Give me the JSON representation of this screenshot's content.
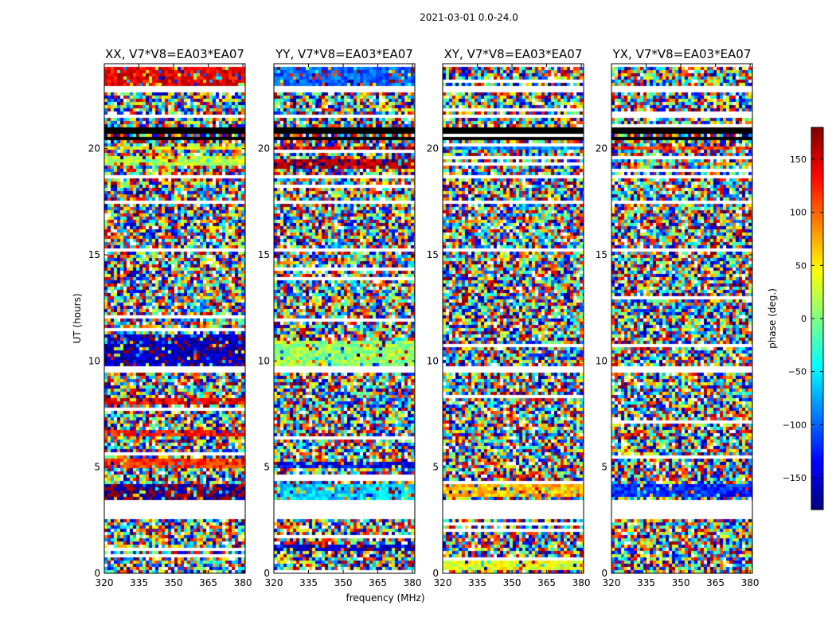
{
  "figure_title": "2021-03-01 0.0-24.0",
  "chart_data": [
    {
      "type": "heatmap",
      "title": "XX, V7*V8=EA03*EA07",
      "polarization": "XX",
      "xlabel": "",
      "ylabel": "UT (hours)",
      "xlim": [
        320,
        381
      ],
      "ylim": [
        0,
        24
      ],
      "xticks": [
        "320",
        "335",
        "350",
        "365",
        "380"
      ],
      "yticks": [
        "0",
        "5",
        "10",
        "15",
        "20"
      ],
      "features": [
        {
          "ut": [
            3.5,
            4.2
          ],
          "phase": -175,
          "note": "dark blue band"
        },
        {
          "ut": [
            3.7,
            3.85
          ],
          "phase": 175,
          "note": "dark red line"
        },
        {
          "ut": [
            5.0,
            5.4
          ],
          "phase": 120
        },
        {
          "ut": [
            6.4,
            6.8
          ],
          "phase": 130
        },
        {
          "ut": [
            8.0,
            8.3
          ],
          "phase": 140
        },
        {
          "ut": [
            9.8,
            11.2
          ],
          "phase": -160,
          "note": "blue band"
        },
        {
          "ut": [
            11.0,
            11.1
          ],
          "phase": 170
        },
        {
          "ut": [
            19.2,
            19.6
          ],
          "phase": 20
        },
        {
          "ut": [
            19.9,
            20.05
          ],
          "phase": 50
        },
        {
          "ut": [
            23.0,
            23.9
          ],
          "phase": 140
        }
      ]
    },
    {
      "type": "heatmap",
      "title": "YY, V7*V8=EA03*EA07",
      "polarization": "YY",
      "xlabel": "frequency (MHz)",
      "ylabel": "",
      "xlim": [
        320,
        381
      ],
      "ylim": [
        0,
        24
      ],
      "xticks": [
        "320",
        "335",
        "350",
        "365",
        "380"
      ],
      "yticks": [
        "0",
        "5",
        "10",
        "15",
        "20"
      ],
      "features": [
        {
          "ut": [
            1.0,
            1.4
          ],
          "phase": -160
        },
        {
          "ut": [
            3.5,
            4.2
          ],
          "phase": -60
        },
        {
          "ut": [
            4.9,
            5.3
          ],
          "phase": -140
        },
        {
          "ut": [
            9.6,
            11.0
          ],
          "phase": 10,
          "note": "green/light band"
        },
        {
          "ut": [
            19.0,
            19.5
          ],
          "phase": 165
        },
        {
          "ut": [
            19.9,
            20.1
          ],
          "phase": 160
        },
        {
          "ut": [
            23.0,
            23.9
          ],
          "phase": -100
        }
      ]
    },
    {
      "type": "heatmap",
      "title": "XY, V7*V8=EA03*EA07",
      "polarization": "XY",
      "xlabel": "",
      "ylabel": "",
      "xlim": [
        320,
        381
      ],
      "ylim": [
        0,
        24
      ],
      "xticks": [
        "320",
        "335",
        "350",
        "365",
        "380"
      ],
      "yticks": [
        "0",
        "5",
        "10",
        "15",
        "20"
      ],
      "features": [
        {
          "ut": [
            0.2,
            0.6
          ],
          "phase": 40
        },
        {
          "ut": [
            3.6,
            4.2
          ],
          "phase": 70
        },
        {
          "ut": [
            19.9,
            20.05
          ],
          "phase": -90
        }
      ]
    },
    {
      "type": "heatmap",
      "title": "YX, V7*V8=EA03*EA07",
      "polarization": "YX",
      "xlabel": "",
      "ylabel": "",
      "xlim": [
        320,
        381
      ],
      "ylim": [
        0,
        24
      ],
      "xticks": [
        "320",
        "335",
        "350",
        "365",
        "380"
      ],
      "yticks": [
        "0",
        "5",
        "10",
        "15",
        "20"
      ],
      "features": [
        {
          "ut": [
            3.6,
            4.2
          ],
          "phase": -120
        },
        {
          "ut": [
            19.9,
            20.05
          ],
          "phase": 120
        }
      ]
    }
  ],
  "shared": {
    "ut_gaps": [
      [
        2.6,
        3.4
      ],
      [
        9.5,
        9.7
      ],
      [
        13.0,
        13.1
      ],
      [
        15.1,
        15.35
      ],
      [
        17.4,
        17.6
      ],
      [
        18.6,
        18.75
      ],
      [
        21.4,
        21.6
      ],
      [
        22.6,
        22.9
      ],
      [
        23.9,
        24.0
      ]
    ],
    "ut_black_bands": [
      [
        20.4,
        20.55
      ],
      [
        20.7,
        20.95
      ]
    ]
  },
  "colorbar": {
    "label": "phase (deg.)",
    "range": [
      -180,
      180
    ],
    "ticks": [
      "150",
      "100",
      "50",
      "0",
      "−50",
      "−100",
      "−150"
    ],
    "tick_values": [
      150,
      100,
      50,
      0,
      -50,
      -100,
      -150
    ],
    "colormap": "jet",
    "colors": [
      "#00007f",
      "#0000ff",
      "#007fff",
      "#00ffff",
      "#7fff7f",
      "#ffff00",
      "#ff7f00",
      "#ff0000",
      "#7f0000"
    ]
  }
}
